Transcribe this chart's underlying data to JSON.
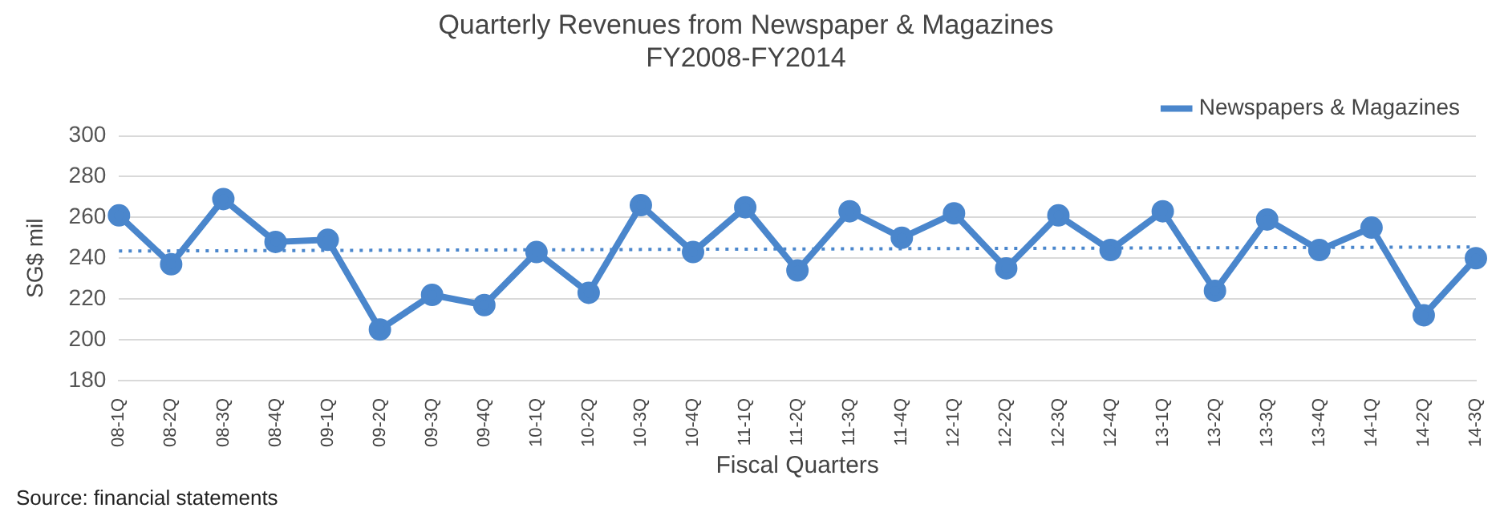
{
  "chart_data": {
    "type": "line",
    "title": "Quarterly Revenues from Newspaper & Magazines",
    "subtitle": "FY2008-FY2014",
    "xlabel": "Fiscal Quarters",
    "ylabel": "SG$ mil",
    "categories": [
      "08-1Q",
      "08-2Q",
      "08-3Q",
      "08-4Q",
      "09-1Q",
      "09-2Q",
      "09-3Q",
      "09-4Q",
      "10-1Q",
      "10-2Q",
      "10-3Q",
      "10-4Q",
      "11-1Q",
      "11-2Q",
      "11-3Q",
      "11-4Q",
      "12-1Q",
      "12-2Q",
      "12-3Q",
      "12-4Q",
      "13-1Q",
      "13-2Q",
      "13-3Q",
      "13-4Q",
      "14-1Q",
      "14-2Q",
      "14-3Q"
    ],
    "series": [
      {
        "name": "Newspapers & Magazines",
        "color": "#4a86cc",
        "marker": "circle",
        "line_style": "solid",
        "values": [
          261,
          237,
          269,
          248,
          249,
          205,
          222,
          217,
          243,
          223,
          266,
          243,
          265,
          234,
          263,
          250,
          262,
          235,
          261,
          244,
          263,
          224,
          259,
          244,
          255,
          212,
          240
        ]
      },
      {
        "type": "line",
        "color": "#4a86cc",
        "marker": "none",
        "line_style": "dotted",
        "x": [
          "08-1Q",
          "14-3Q"
        ],
        "values": [
          243.5,
          245.5
        ]
      }
    ],
    "ylim": [
      180,
      300
    ],
    "yticks": [
      180,
      200,
      220,
      240,
      260,
      280,
      300
    ],
    "grid": "y",
    "legend": "top right",
    "annotations": [
      "Source: financial statements"
    ]
  }
}
